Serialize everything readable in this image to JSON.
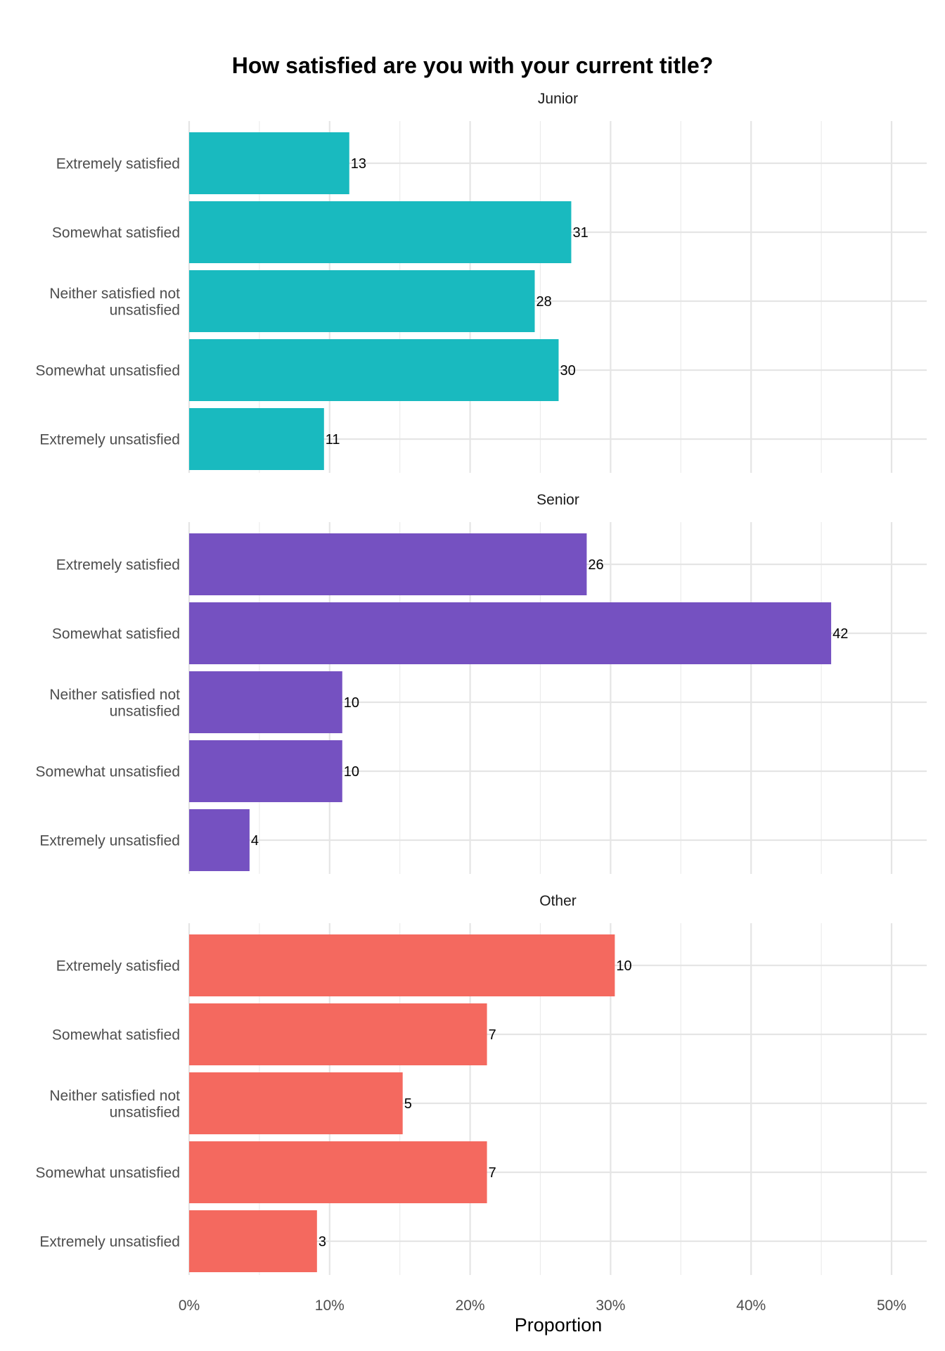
{
  "chart_data": {
    "type": "bar",
    "orientation": "horizontal",
    "title": "How satisfied are you with your current title?",
    "xlabel": "Proportion",
    "ylabel": "",
    "xlim": [
      0,
      0.525
    ],
    "x_ticks": [
      0,
      0.1,
      0.2,
      0.3,
      0.4,
      0.5
    ],
    "x_tick_labels": [
      "0%",
      "10%",
      "20%",
      "30%",
      "40%",
      "50%"
    ],
    "grid": true,
    "legend": "none",
    "categories": [
      "Extremely satisfied",
      "Somewhat satisfied",
      "Neither satisfied not unsatisfied",
      "Somewhat unsatisfied",
      "Extremely unsatisfied"
    ],
    "panels": [
      {
        "name": "Junior",
        "color": "#19BABF",
        "counts": [
          13,
          31,
          28,
          30,
          11
        ],
        "proportions": [
          0.114,
          0.272,
          0.246,
          0.263,
          0.096
        ]
      },
      {
        "name": "Senior",
        "color": "#7551C1",
        "counts": [
          26,
          42,
          10,
          10,
          4
        ],
        "proportions": [
          0.283,
          0.457,
          0.109,
          0.109,
          0.043
        ]
      },
      {
        "name": "Other",
        "color": "#F4695F",
        "counts": [
          10,
          7,
          5,
          7,
          3
        ],
        "proportions": [
          0.303,
          0.212,
          0.152,
          0.212,
          0.091
        ]
      }
    ]
  }
}
